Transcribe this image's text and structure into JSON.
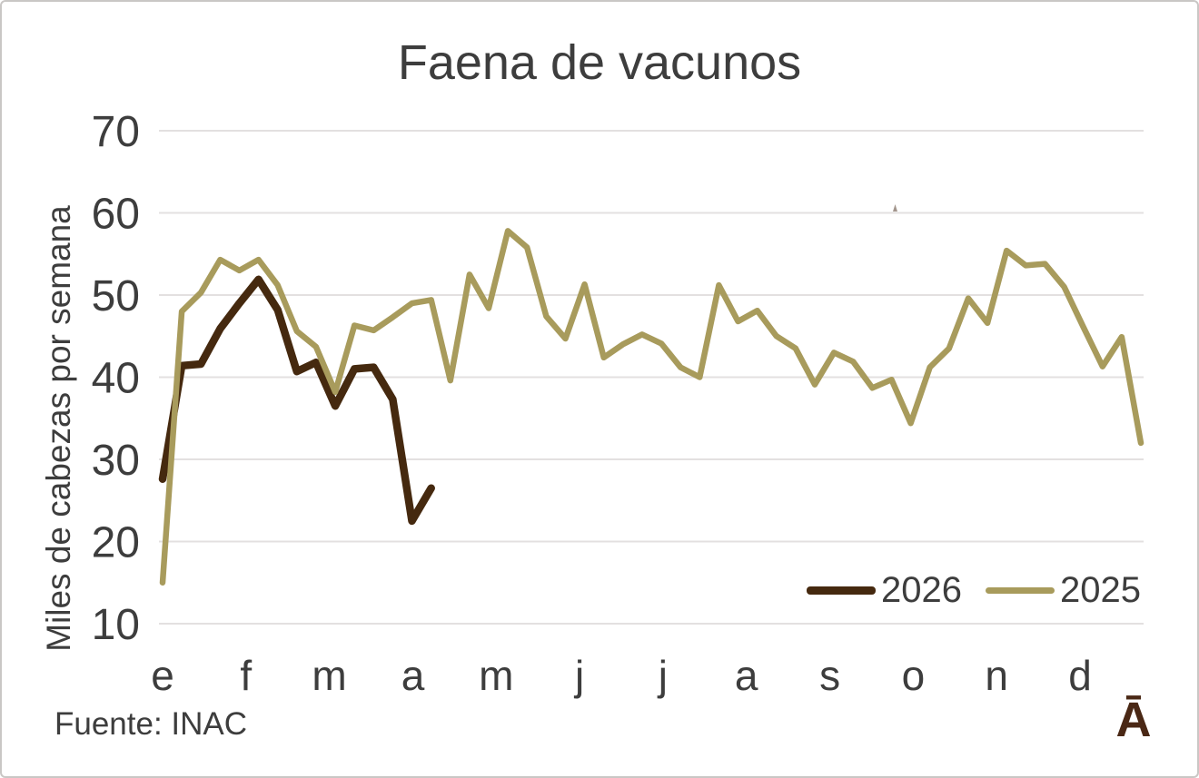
{
  "page": {
    "title": "Faena de vacunos",
    "source_note": "Fuente: INAC",
    "logo_text": "Ā"
  },
  "colors": {
    "series_2026": "#45290f",
    "series_2025": "#a89b5c",
    "text": "#3d3d3d",
    "gridline": "#e3e0e0",
    "logo": "#4a2815",
    "frame_border": "#c9c7c5"
  },
  "chart_data": {
    "type": "line",
    "title": "Faena de vacunos",
    "xlabel": "",
    "ylabel": "Miles de cabezas por semana",
    "x_unit": "semanas (un punto por semana, meses rotulados en el eje)",
    "month_labels": [
      "e",
      "f",
      "m",
      "a",
      "m",
      "j",
      "j",
      "a",
      "s",
      "o",
      "n",
      "d"
    ],
    "y_ticks": [
      70,
      60,
      50,
      40,
      30,
      20,
      10
    ],
    "ylim": [
      10,
      70
    ],
    "grid": "horizontal-only",
    "legend_position": "inside-bottom-right",
    "series": [
      {
        "name": "2026",
        "color": "#45290f",
        "stroke_width": 8.5,
        "values": [
          27.6,
          41.4,
          41.6,
          45.9,
          49.0,
          51.9,
          48.2,
          40.7,
          41.8,
          36.5,
          41.0,
          41.2,
          37.3,
          22.5,
          26.5
        ]
      },
      {
        "name": "2025",
        "color": "#a89b5c",
        "stroke_width": 6.5,
        "values": [
          15.0,
          48.0,
          50.3,
          54.3,
          53.0,
          54.3,
          51.2,
          45.6,
          43.7,
          38.2,
          46.3,
          45.7,
          47.3,
          49.0,
          49.4,
          39.6,
          52.5,
          48.4,
          57.8,
          55.8,
          47.4,
          44.7,
          51.3,
          42.4,
          44.0,
          45.2,
          44.1,
          41.2,
          40.0,
          51.2,
          46.8,
          48.1,
          45.0,
          43.5,
          39.1,
          43.0,
          41.9,
          38.7,
          39.7,
          34.4,
          41.2,
          43.5,
          49.6,
          46.6,
          55.4,
          53.6,
          53.8,
          51.0,
          46.1,
          41.3,
          44.9,
          32.0
        ]
      }
    ]
  }
}
